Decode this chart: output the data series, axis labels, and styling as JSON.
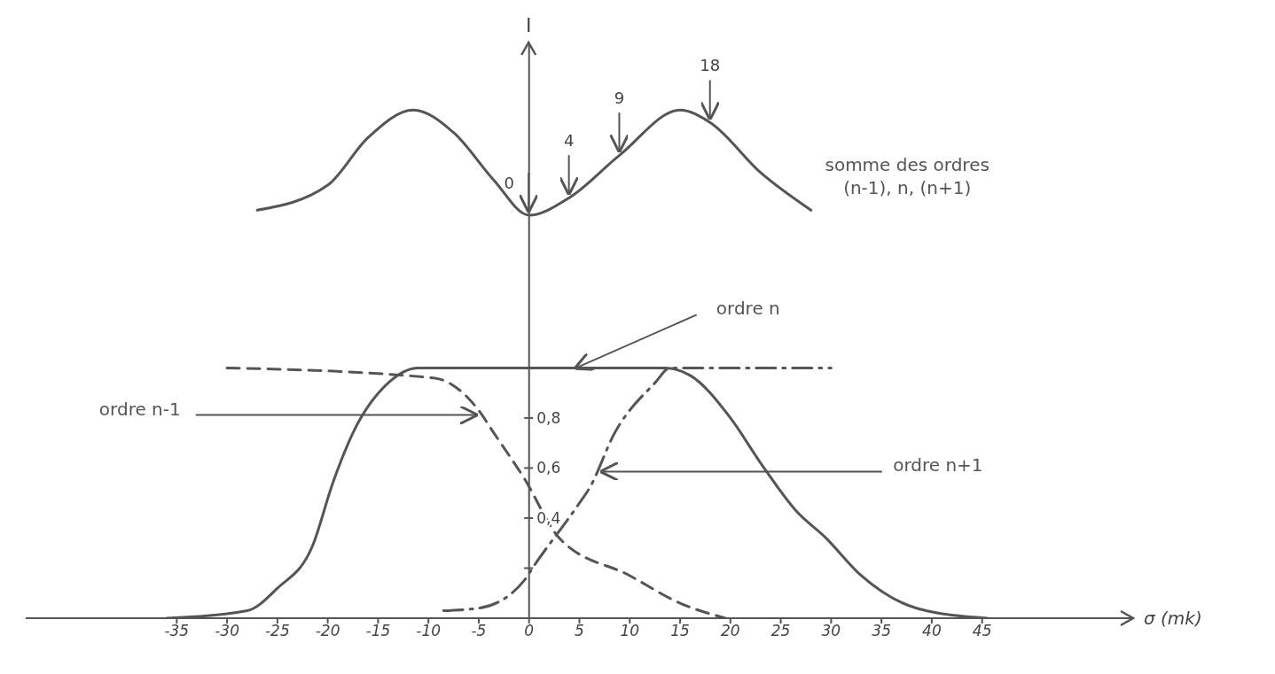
{
  "chart_data": {
    "type": "line",
    "xlabel": "σ (mk)",
    "ylabel": "I",
    "xlim": [
      -50,
      60
    ],
    "xticks": [
      -35,
      -30,
      -25,
      -20,
      -15,
      -10,
      -5,
      0,
      5,
      10,
      15,
      20,
      25,
      30,
      35,
      40,
      45
    ],
    "ylim": [
      0,
      2.3
    ],
    "yticks": [
      {
        "value": 0.2,
        "label": null
      },
      {
        "value": 0.4,
        "label": "0,4"
      },
      {
        "value": 0.6,
        "label": "0,6"
      },
      {
        "value": 0.8,
        "label": "0,8"
      }
    ],
    "series": [
      {
        "name": "somme des ordres (n-1), n, (n+1)",
        "color": "#555555",
        "line_style": "solid",
        "x": [
          -27,
          -20,
          -16,
          -11.5,
          -7.5,
          -3.5,
          0,
          4,
          9,
          15,
          18,
          23,
          28
        ],
        "values": [
          1.63,
          1.73,
          1.92,
          2.03,
          1.94,
          1.75,
          1.61,
          1.68,
          1.85,
          2.03,
          1.98,
          1.78,
          1.63
        ]
      },
      {
        "name": "ordre n",
        "color": "#555555",
        "line_style": "solid",
        "x": [
          -36,
          -28,
          -25,
          -21.5,
          -19.5,
          -17.5,
          -14,
          -11,
          13.5,
          16,
          20,
          23,
          26.5,
          29.5,
          33,
          38.5,
          45.5
        ],
        "values": [
          0,
          0.03,
          0.12,
          0.29,
          0.54,
          0.74,
          0.94,
          1,
          1,
          0.97,
          0.8,
          0.62,
          0.43,
          0.32,
          0.17,
          0.04,
          0
        ]
      },
      {
        "name": "ordre n-1",
        "color": "#555555",
        "line_style": "dashed",
        "x": [
          -30,
          -9.5,
          -5,
          -3.5,
          -0.5,
          3,
          10,
          15,
          19.5
        ],
        "values": [
          1,
          0.96,
          0.83,
          0.74,
          0.56,
          0.32,
          0.17,
          0.06,
          0
        ]
      },
      {
        "name": "ordre n+1",
        "color": "#555555",
        "line_style": "dashdot",
        "x": [
          -8.5,
          -5,
          -0.5,
          0.5,
          5,
          6,
          8.5,
          12.5,
          14,
          30
        ],
        "values": [
          0.03,
          0.04,
          0.15,
          0.21,
          0.46,
          0.52,
          0.74,
          0.94,
          1,
          1
        ]
      }
    ],
    "annotations": [
      {
        "text": "0",
        "x": 0,
        "y": 1.61
      },
      {
        "text": "4",
        "x": 4,
        "y": 1.68
      },
      {
        "text": "9",
        "x": 9,
        "y": 1.85
      },
      {
        "text": "18",
        "x": 18,
        "y": 1.98
      }
    ]
  }
}
